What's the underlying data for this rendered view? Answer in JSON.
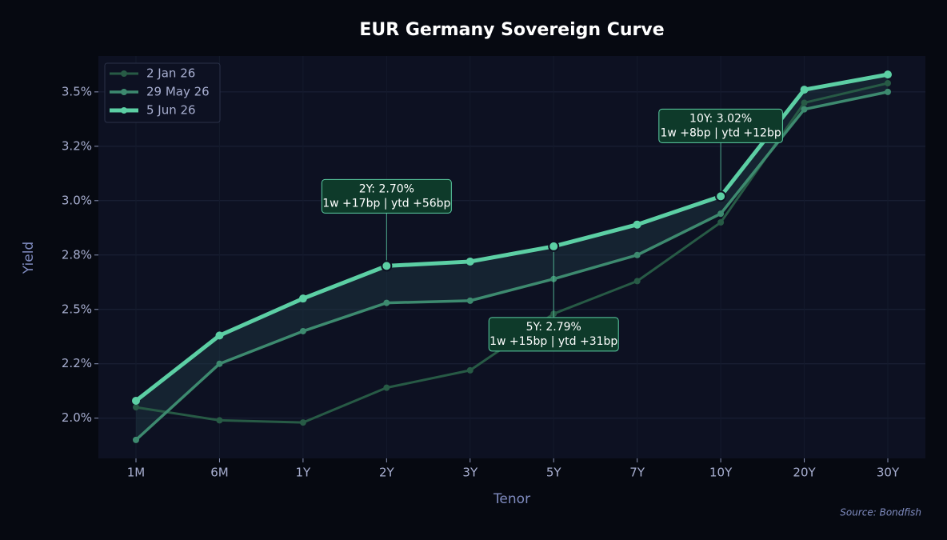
{
  "chart_data": {
    "type": "line",
    "title": "EUR Germany Sovereign Curve",
    "x_label": "Tenor",
    "y_label": "Yield",
    "source": "Source: Bondfish",
    "categories": [
      "1M",
      "6M",
      "1Y",
      "2Y",
      "3Y",
      "5Y",
      "7Y",
      "10Y",
      "20Y",
      "30Y"
    ],
    "series": [
      {
        "name": "2 Jan 26",
        "color": "#275a45",
        "values": [
          2.05,
          1.99,
          1.98,
          2.14,
          2.22,
          2.48,
          2.63,
          2.9,
          3.45,
          3.54
        ]
      },
      {
        "name": "29 May 26",
        "color": "#3d8a6f",
        "values": [
          1.9,
          2.25,
          2.4,
          2.53,
          2.54,
          2.64,
          2.75,
          2.94,
          3.42,
          3.5
        ]
      },
      {
        "name": "5 Jun 26",
        "color": "#5ccfa4",
        "values": [
          2.08,
          2.38,
          2.55,
          2.7,
          2.72,
          2.79,
          2.89,
          3.02,
          3.51,
          3.58
        ]
      }
    ],
    "ylim": [
      1.815,
      3.665
    ],
    "yticks": [
      {
        "value": 2.0,
        "label": "2.0%"
      },
      {
        "value": 2.25,
        "label": "2.2%"
      },
      {
        "value": 2.5,
        "label": "2.5%"
      },
      {
        "value": 2.75,
        "label": "2.8%"
      },
      {
        "value": 3.0,
        "label": "3.0%"
      },
      {
        "value": 3.25,
        "label": "3.2%"
      },
      {
        "value": 3.5,
        "label": "3.5%"
      }
    ],
    "grid": true,
    "legend": "upper left",
    "annotations": [
      {
        "x": "2Y",
        "y": 2.7,
        "label": [
          "2Y: 2.70%",
          "1w +17bp | ytd +56bp"
        ]
      },
      {
        "x": "5Y",
        "y": 2.79,
        "label": [
          "5Y: 2.79%",
          "1w +15bp | ytd +31bp"
        ]
      },
      {
        "x": "10Y",
        "y": 3.02,
        "label": [
          "10Y: 3.02%",
          "1w +8bp | ytd +12bp"
        ]
      }
    ]
  }
}
